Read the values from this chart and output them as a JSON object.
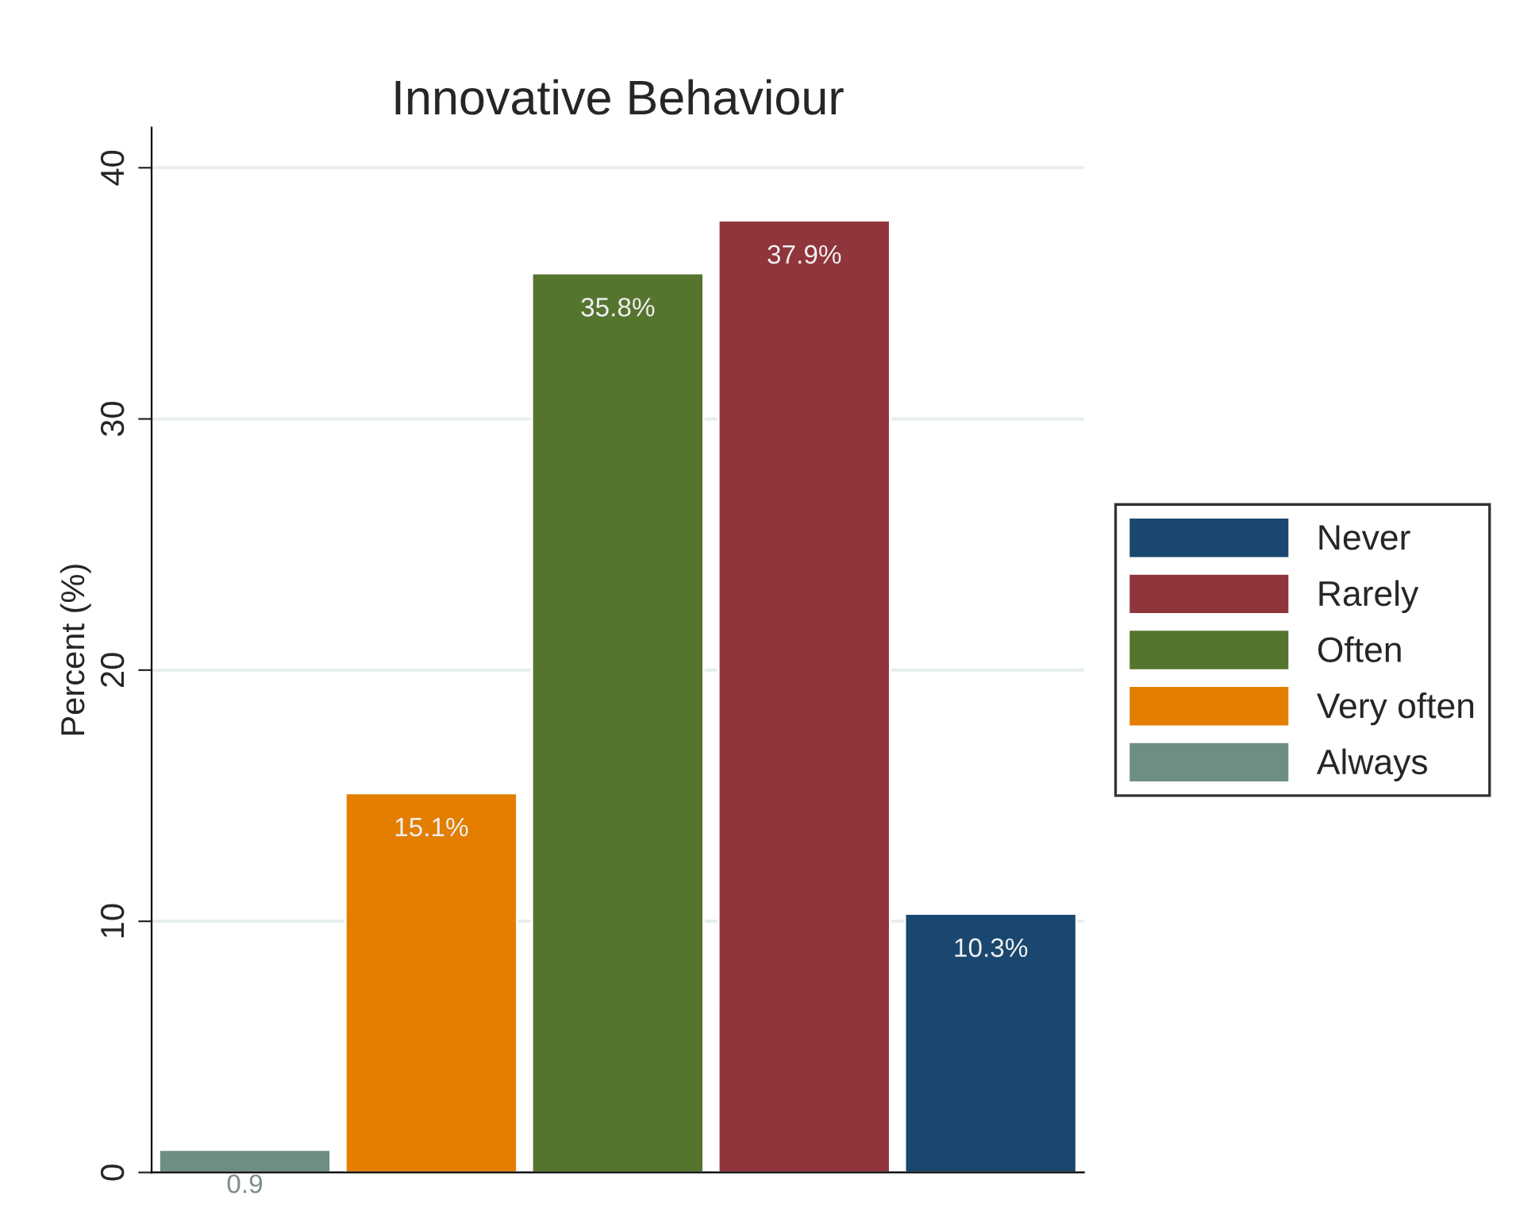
{
  "chart_data": {
    "type": "bar",
    "title": "Innovative Behaviour",
    "ylabel": "Percent (%)",
    "categories": [
      null,
      null,
      null,
      null,
      null
    ],
    "series": [
      {
        "name": "Never",
        "color": "#1a476f",
        "values": [
          null,
          null,
          null,
          null,
          10.3
        ],
        "value_labels": [
          null,
          null,
          null,
          null,
          "10.3%"
        ]
      },
      {
        "name": "Rarely",
        "color": "#90353b",
        "values": [
          null,
          null,
          null,
          37.9,
          null
        ],
        "value_labels": [
          null,
          null,
          null,
          "37.9%",
          null
        ]
      },
      {
        "name": "Often",
        "color": "#55752f",
        "values": [
          null,
          null,
          35.8,
          null,
          null
        ],
        "value_labels": [
          null,
          null,
          "35.8%",
          null,
          null
        ]
      },
      {
        "name": "Very often",
        "color": "#e37e00",
        "values": [
          null,
          15.1,
          null,
          null,
          null
        ],
        "value_labels": [
          null,
          "15.1%",
          null,
          null,
          null
        ]
      },
      {
        "name": "Always",
        "color": "#6e8e84",
        "values": [
          0.9,
          null,
          null,
          null,
          null
        ],
        "value_labels": [
          "0.9",
          null,
          null,
          null,
          null
        ]
      }
    ],
    "ylim": [
      0,
      41.6
    ],
    "yticks": [
      0,
      10,
      20,
      30,
      40
    ],
    "grid": "y",
    "legend": "right"
  }
}
